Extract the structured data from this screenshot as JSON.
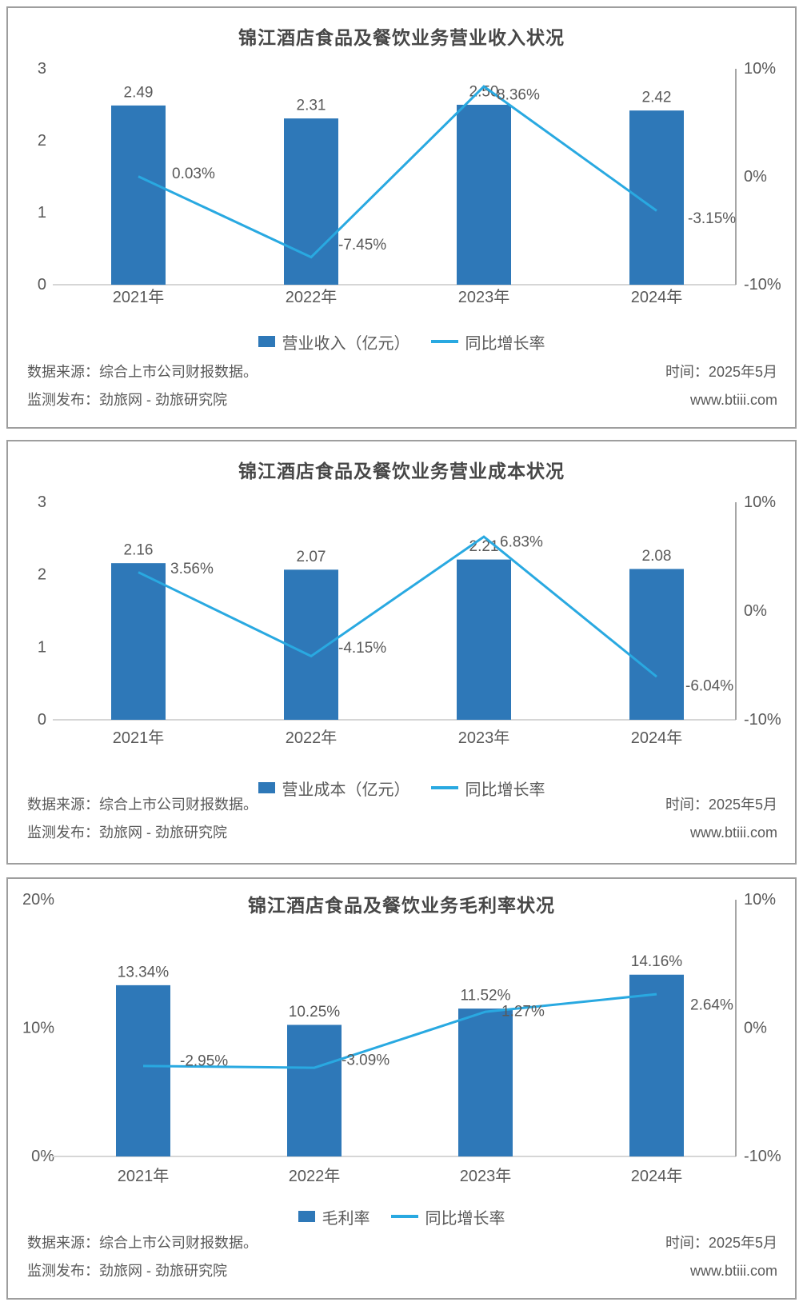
{
  "footer": {
    "source": "数据来源：综合上市公司财报数据。",
    "publisher": "监测发布：劲旅网 - 劲旅研究院",
    "time": "时间：2025年5月",
    "website": "www.btiii.com"
  },
  "colors": {
    "bar": "#2e78b8",
    "line": "#29a9e1",
    "label_text": "#595959",
    "title_text": "#474747",
    "right_axis_line": "#a6a6a6",
    "baseline": "#d6d6d6",
    "panel_border": "#9e9e9e"
  },
  "chart_data": [
    {
      "type": "bar",
      "combo": "bar+line dual axis",
      "title": "锦江酒店食品及餐饮业务营业收入状况",
      "categories": [
        "2021年",
        "2022年",
        "2023年",
        "2024年"
      ],
      "series": [
        {
          "name": "营业收入（亿元）",
          "type": "bar",
          "axis": "left",
          "values": [
            2.49,
            2.31,
            2.5,
            2.42
          ],
          "labels": [
            "2.49",
            "2.31",
            "2.50",
            "2.42"
          ]
        },
        {
          "name": "同比增长率",
          "type": "line",
          "axis": "right",
          "values": [
            0.03,
            -7.45,
            8.36,
            -3.15
          ],
          "labels": [
            "0.03%",
            "-7.45%",
            "8.36%",
            "-3.15%"
          ]
        }
      ],
      "left_axis": {
        "min": 0,
        "max": 3,
        "ticks": [
          "3",
          "2",
          "1",
          "0"
        ]
      },
      "right_axis": {
        "min": -10,
        "max": 10,
        "ticks": [
          "10%",
          "0%",
          "-10%"
        ]
      },
      "legend_position": "bottom",
      "grid": false,
      "line_label_dx": [
        42,
        34,
        16,
        39
      ],
      "line_label_dy": [
        -3,
        -15,
        11,
        10
      ]
    },
    {
      "type": "bar",
      "combo": "bar+line dual axis",
      "title": "锦江酒店食品及餐饮业务营业成本状况",
      "categories": [
        "2021年",
        "2022年",
        "2023年",
        "2024年"
      ],
      "series": [
        {
          "name": "营业成本（亿元）",
          "type": "bar",
          "axis": "left",
          "values": [
            2.16,
            2.07,
            2.21,
            2.08
          ],
          "labels": [
            "2.16",
            "2.07",
            "2.21",
            "2.08"
          ]
        },
        {
          "name": "同比增长率",
          "type": "line",
          "axis": "right",
          "values": [
            3.56,
            -4.15,
            6.83,
            -6.04
          ],
          "labels": [
            "3.56%",
            "-4.15%",
            "6.83%",
            "-6.04%"
          ]
        }
      ],
      "left_axis": {
        "min": 0,
        "max": 3,
        "ticks": [
          "3",
          "2",
          "1",
          "0"
        ]
      },
      "right_axis": {
        "min": -10,
        "max": 10,
        "ticks": [
          "10%",
          "0%",
          "-10%"
        ]
      },
      "legend_position": "bottom",
      "grid": false,
      "line_label_dx": [
        40,
        34,
        20,
        36
      ],
      "line_label_dy": [
        -4,
        -10,
        7,
        12
      ]
    },
    {
      "type": "bar",
      "combo": "bar+line dual axis",
      "title": "锦江酒店食品及餐饮业务毛利率状况",
      "categories": [
        "2021年",
        "2022年",
        "2023年",
        "2024年"
      ],
      "series": [
        {
          "name": "毛利率",
          "type": "bar",
          "axis": "left",
          "values": [
            13.34,
            10.25,
            11.52,
            14.16
          ],
          "labels": [
            "13.34%",
            "10.25%",
            "11.52%",
            "14.16%"
          ]
        },
        {
          "name": "同比增长率",
          "type": "line",
          "axis": "right",
          "values": [
            -2.95,
            -3.09,
            1.27,
            2.64
          ],
          "labels": [
            "-2.95%",
            "-3.09%",
            "1.27%",
            "2.64%"
          ]
        }
      ],
      "left_axis": {
        "min": 0,
        "max": 20,
        "ticks": [
          "20%",
          "10%",
          "0%"
        ]
      },
      "right_axis": {
        "min": -10,
        "max": 10,
        "ticks": [
          "10%",
          "0%",
          "-10%"
        ]
      },
      "legend_position": "bottom",
      "grid": false,
      "line_label_dx": [
        46,
        34,
        20,
        42
      ],
      "line_label_dy": [
        -6,
        -9,
        0,
        14
      ]
    }
  ]
}
